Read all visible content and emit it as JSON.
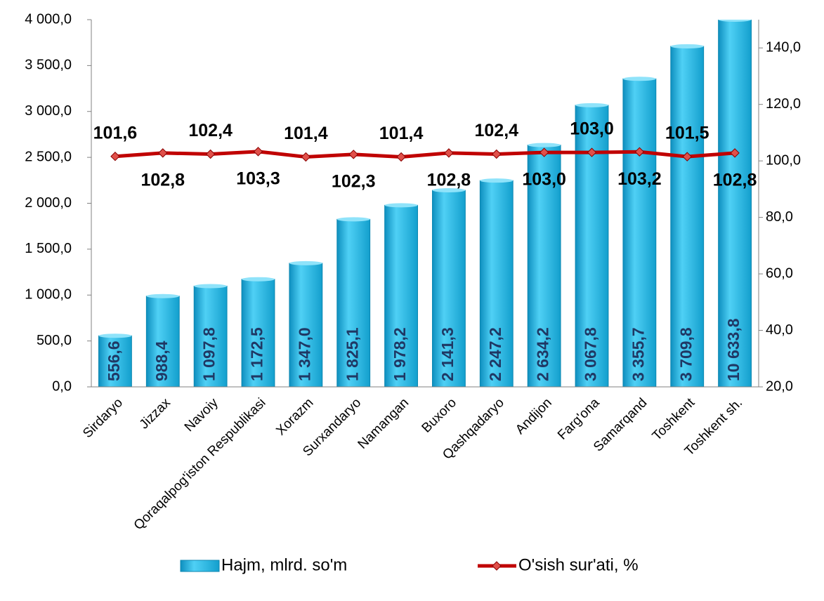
{
  "chart_data": {
    "type": "bar_line",
    "categories": [
      "Sirdaryo",
      "Jizzax",
      "Navoiy",
      "Qoraqalpog'iston Respublikasi",
      "Xorazm",
      "Surxandaryo",
      "Namangan",
      "Buxoro",
      "Qashqadaryo",
      "Andijon",
      "Farg'ona",
      "Samarqand",
      "Toshkent",
      "Toshkent sh."
    ],
    "series": [
      {
        "name": "Hajm, mlrd. so'm",
        "type": "bar",
        "color": "#21b6e3",
        "values": [
          556.6,
          988.4,
          1097.8,
          1172.5,
          1347.0,
          1825.1,
          1978.2,
          2141.3,
          2247.2,
          2634.2,
          3067.8,
          3355.7,
          3709.8,
          10633.8
        ],
        "value_labels": [
          "556,6",
          "988,4",
          "1 097,8",
          "1 172,5",
          "1 347,0",
          "1 825,1",
          "1 978,2",
          "2 141,3",
          "2 247,2",
          "2 634,2",
          "3 067,8",
          "3 355,7",
          "3 709,8",
          "10 633,8"
        ]
      },
      {
        "name": "O'sish sur'ati, %",
        "type": "line",
        "axis": "y2",
        "color": "#c00000",
        "values": [
          101.6,
          102.8,
          102.4,
          103.3,
          101.4,
          102.3,
          101.4,
          102.8,
          102.4,
          103.0,
          103.0,
          103.2,
          101.5,
          102.8
        ],
        "value_labels": [
          "101,6",
          "102,8",
          "102,4",
          "103,3",
          "101,4",
          "102,3",
          "101,4",
          "102,8",
          "102,4",
          "103,0",
          "103,0",
          "103,2",
          "101,5",
          "102,8"
        ]
      }
    ],
    "ylim": [
      0,
      4000
    ],
    "yticks": [
      {
        "value": 0,
        "label": "0,0"
      },
      {
        "value": 500,
        "label": "500,0"
      },
      {
        "value": 1000,
        "label": "1 000,0"
      },
      {
        "value": 1500,
        "label": "1 500,0"
      },
      {
        "value": 2000,
        "label": "2 000,0"
      },
      {
        "value": 2500,
        "label": "2 500,0"
      },
      {
        "value": 3000,
        "label": "3 000,0"
      },
      {
        "value": 3500,
        "label": "3 500,0"
      },
      {
        "value": 4000,
        "label": "4 000,0"
      }
    ],
    "y2lim": [
      20,
      150
    ],
    "y2ticks": [
      {
        "value": 20,
        "label": "20,0"
      },
      {
        "value": 40,
        "label": "40,0"
      },
      {
        "value": 60,
        "label": "60,0"
      },
      {
        "value": 80,
        "label": "80,0"
      },
      {
        "value": 100,
        "label": "100,0"
      },
      {
        "value": 120,
        "label": "120,0"
      },
      {
        "value": 140,
        "label": "140,0"
      }
    ],
    "legend": "bottom"
  }
}
